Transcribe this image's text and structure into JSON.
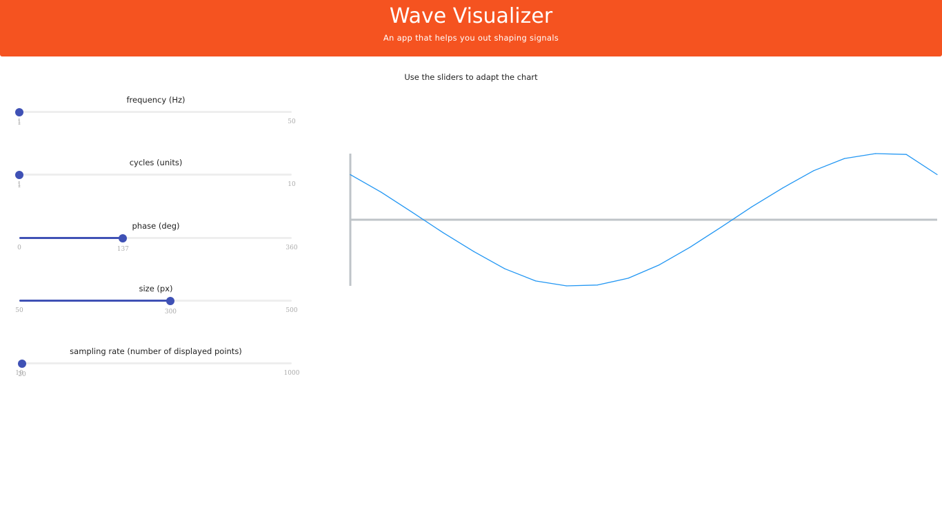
{
  "header": {
    "title": "Wave Visualizer",
    "subtitle": "An app that helps you out shaping signals",
    "background_color": "#f55320"
  },
  "instructions": "Use the sliders to adapt the chart",
  "sliders": [
    {
      "label": "frequency (Hz)",
      "value": "1",
      "min": "1",
      "max": "50"
    },
    {
      "label": "cycles (units)",
      "value": "1",
      "min": "1",
      "max": "10"
    },
    {
      "label": "phase (deg)",
      "value": "137",
      "min": "0",
      "max": "360"
    },
    {
      "label": "size (px)",
      "value": "300",
      "min": "50",
      "max": "500"
    },
    {
      "label": "sampling rate (number of displayed points)",
      "value": "20",
      "min": "10",
      "max": "1000"
    }
  ],
  "accent_color": "#3f51b5",
  "chart_data": {
    "type": "line",
    "title": "",
    "xlabel": "",
    "ylabel": "",
    "xlim": [
      0,
      1
    ],
    "ylim": [
      -1,
      1
    ],
    "grid": false,
    "line_color": "#2196f3",
    "axis_color": "#bfc4c8",
    "series": [
      {
        "x": [
          0,
          0.0526,
          0.1053,
          0.1579,
          0.2105,
          0.2632,
          0.3158,
          0.3684,
          0.4211,
          0.4737,
          0.5263,
          0.5789,
          0.6316,
          0.6842,
          0.7368,
          0.7895,
          0.8421,
          0.8947,
          0.9474,
          1
        ],
        "y": [
          0.682,
          0.416,
          0.114,
          -0.195,
          -0.481,
          -0.742,
          -0.926,
          -1.0,
          -0.988,
          -0.884,
          -0.683,
          -0.416,
          -0.114,
          0.196,
          0.48,
          0.742,
          0.926,
          1.0,
          0.988,
          0.682
        ]
      }
    ]
  }
}
